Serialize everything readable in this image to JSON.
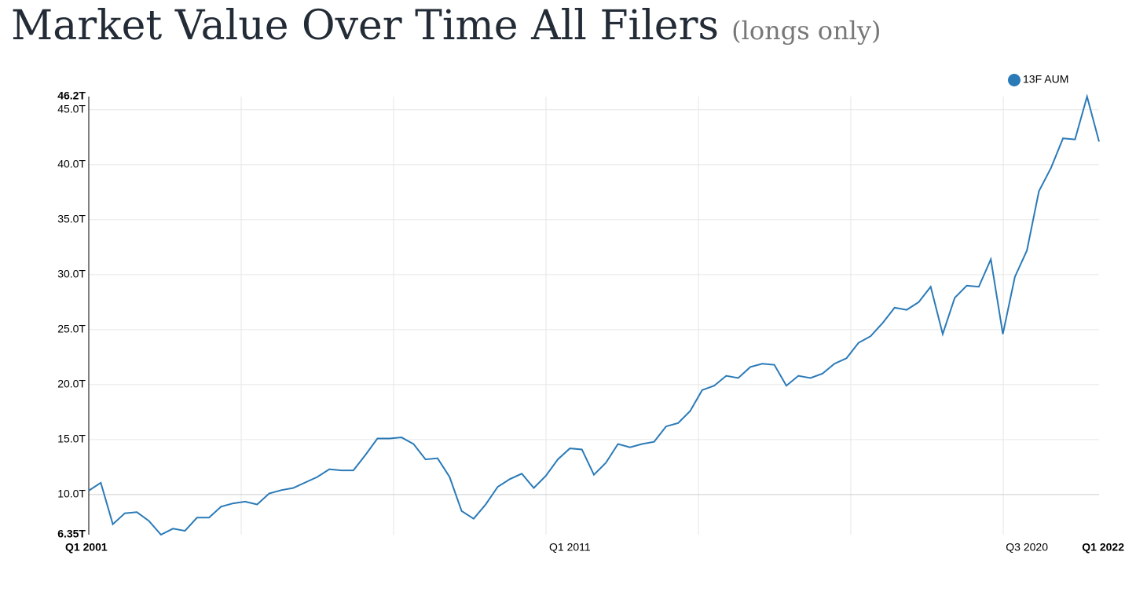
{
  "chart_data": {
    "type": "line",
    "title": "Market Value Over Time All Filers",
    "subtitle": "(longs only)",
    "categories": [
      "Q1 2001",
      null,
      null,
      null,
      null,
      null,
      null,
      null,
      null,
      null,
      null,
      null,
      null,
      null,
      null,
      null,
      null,
      null,
      null,
      null,
      null,
      null,
      null,
      null,
      null,
      null,
      null,
      null,
      null,
      null,
      null,
      null,
      null,
      null,
      null,
      null,
      null,
      null,
      null,
      null,
      "Q1 2011",
      null,
      null,
      null,
      null,
      null,
      null,
      null,
      null,
      null,
      null,
      null,
      null,
      null,
      null,
      null,
      null,
      null,
      null,
      null,
      null,
      null,
      null,
      null,
      null,
      null,
      null,
      null,
      null,
      null,
      null,
      null,
      null,
      null,
      null,
      null,
      null,
      null,
      "Q3 2020",
      null,
      null,
      null,
      null,
      null,
      "Q1 2022"
    ],
    "series": [
      {
        "name": "13F AUM",
        "color": "#2a7ab8",
        "values": [
          10.36,
          11.07,
          7.3,
          8.3,
          8.4,
          7.6,
          6.35,
          6.9,
          6.7,
          7.9,
          7.9,
          8.9,
          9.2,
          9.36,
          9.1,
          10.1,
          10.4,
          10.6,
          11.1,
          11.6,
          12.3,
          12.2,
          12.2,
          13.6,
          15.1,
          15.1,
          15.2,
          14.6,
          13.2,
          13.3,
          11.6,
          8.5,
          7.8,
          9.1,
          10.7,
          11.4,
          11.9,
          10.6,
          11.7,
          13.2,
          14.2,
          14.1,
          11.8,
          12.9,
          14.6,
          14.3,
          14.6,
          14.8,
          16.2,
          16.5,
          17.6,
          19.5,
          19.9,
          20.8,
          20.6,
          21.6,
          21.9,
          21.8,
          19.9,
          20.8,
          20.6,
          21.0,
          21.9,
          22.4,
          23.8,
          24.4,
          25.6,
          27.0,
          26.8,
          27.5,
          28.9,
          24.6,
          27.9,
          29.0,
          28.9,
          31.4,
          24.6,
          29.8,
          32.2,
          37.6,
          39.7,
          42.4,
          42.3,
          46.2,
          42.1
        ]
      }
    ],
    "ylim": [
      6.35,
      46.2
    ],
    "yticks": [
      {
        "value": 6.35,
        "label": "6.35T"
      },
      {
        "value": 10,
        "label": "10.0T"
      },
      {
        "value": 15,
        "label": "15.0T"
      },
      {
        "value": 20,
        "label": "20.0T"
      },
      {
        "value": 25,
        "label": "25.0T"
      },
      {
        "value": 30,
        "label": "30.0T"
      },
      {
        "value": 35,
        "label": "35.0T"
      },
      {
        "value": 40,
        "label": "40.0T"
      },
      {
        "value": 45,
        "label": "45.0T"
      },
      {
        "value": 46.2,
        "label": "46.2T"
      }
    ],
    "grid": true,
    "legend": "top-right"
  }
}
